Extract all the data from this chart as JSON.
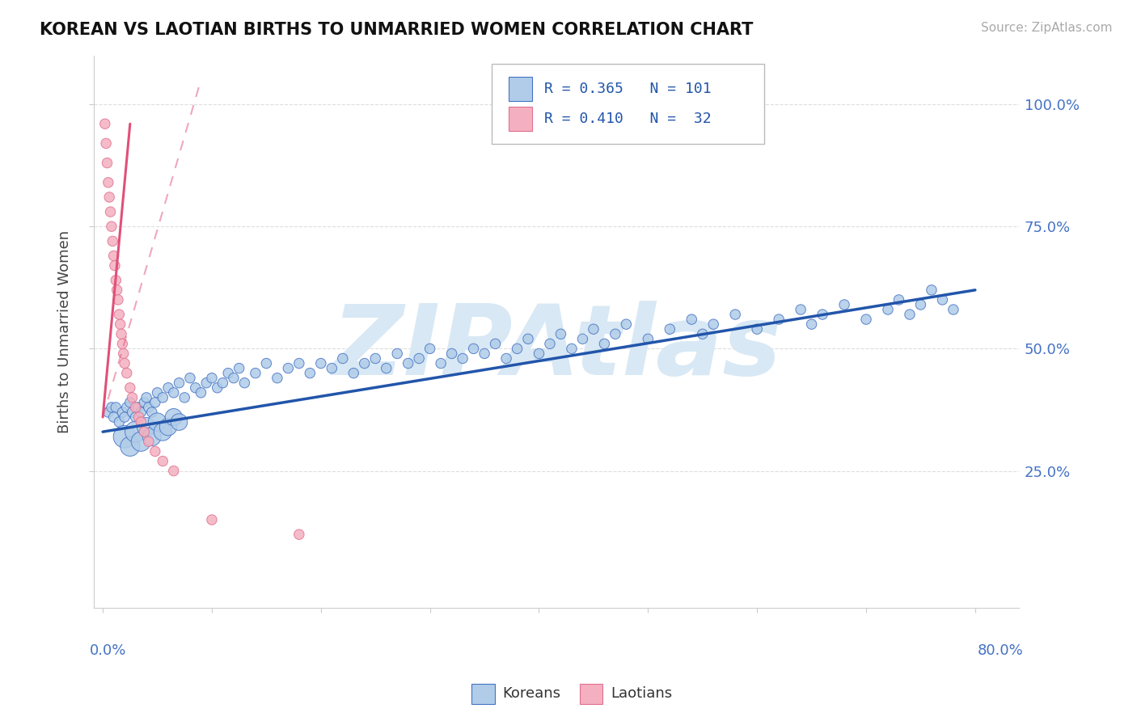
{
  "title": "KOREAN VS LAOTIAN BIRTHS TO UNMARRIED WOMEN CORRELATION CHART",
  "source_text": "Source: ZipAtlas.com",
  "ylabel": "Births to Unmarried Women",
  "legend_korean_r": "R = 0.365",
  "legend_korean_n": "N = 101",
  "legend_laotian_r": "R = 0.410",
  "legend_laotian_n": "N =  32",
  "label_korean": "Koreans",
  "label_laotian": "Laotians",
  "korean_fill": "#b0cce8",
  "korean_edge": "#4472c4",
  "laotian_fill": "#f4b0c0",
  "laotian_edge": "#e07090",
  "trend_korean_color": "#2255aa",
  "trend_laotian_color": "#e05078",
  "watermark_color": "#d8e8f4",
  "bg_color": "#ffffff",
  "grid_color": "#dddddd",
  "ytick_color": "#4472c4",
  "xtick_label_color": "#4472c4",
  "title_color": "#111111",
  "source_color": "#aaaaaa",
  "ylabel_color": "#444444",
  "xmin": 0.0,
  "xmax": 0.8,
  "ymin": 0.0,
  "ymax": 1.05,
  "yticks": [
    0.25,
    0.5,
    0.75,
    1.0
  ],
  "yticklabels": [
    "25.0%",
    "50.0%",
    "75.0%",
    "100.0%"
  ],
  "korean_x": [
    0.005,
    0.008,
    0.01,
    0.012,
    0.015,
    0.018,
    0.02,
    0.022,
    0.025,
    0.027,
    0.03,
    0.032,
    0.035,
    0.038,
    0.04,
    0.042,
    0.045,
    0.048,
    0.05,
    0.055,
    0.06,
    0.065,
    0.07,
    0.075,
    0.08,
    0.085,
    0.09,
    0.095,
    0.1,
    0.105,
    0.11,
    0.115,
    0.12,
    0.125,
    0.13,
    0.14,
    0.15,
    0.16,
    0.17,
    0.18,
    0.19,
    0.2,
    0.21,
    0.22,
    0.23,
    0.24,
    0.25,
    0.26,
    0.27,
    0.28,
    0.29,
    0.3,
    0.31,
    0.32,
    0.33,
    0.34,
    0.35,
    0.36,
    0.37,
    0.38,
    0.39,
    0.4,
    0.41,
    0.42,
    0.43,
    0.44,
    0.45,
    0.46,
    0.47,
    0.48,
    0.5,
    0.52,
    0.54,
    0.55,
    0.56,
    0.58,
    0.6,
    0.62,
    0.64,
    0.65,
    0.66,
    0.68,
    0.7,
    0.72,
    0.73,
    0.74,
    0.75,
    0.76,
    0.77,
    0.78,
    0.02,
    0.025,
    0.03,
    0.035,
    0.04,
    0.045,
    0.05,
    0.055,
    0.06,
    0.065,
    0.07
  ],
  "korean_y": [
    0.37,
    0.38,
    0.36,
    0.38,
    0.35,
    0.37,
    0.36,
    0.38,
    0.39,
    0.37,
    0.36,
    0.38,
    0.37,
    0.39,
    0.4,
    0.38,
    0.37,
    0.39,
    0.41,
    0.4,
    0.42,
    0.41,
    0.43,
    0.4,
    0.44,
    0.42,
    0.41,
    0.43,
    0.44,
    0.42,
    0.43,
    0.45,
    0.44,
    0.46,
    0.43,
    0.45,
    0.47,
    0.44,
    0.46,
    0.47,
    0.45,
    0.47,
    0.46,
    0.48,
    0.45,
    0.47,
    0.48,
    0.46,
    0.49,
    0.47,
    0.48,
    0.5,
    0.47,
    0.49,
    0.48,
    0.5,
    0.49,
    0.51,
    0.48,
    0.5,
    0.52,
    0.49,
    0.51,
    0.53,
    0.5,
    0.52,
    0.54,
    0.51,
    0.53,
    0.55,
    0.52,
    0.54,
    0.56,
    0.53,
    0.55,
    0.57,
    0.54,
    0.56,
    0.58,
    0.55,
    0.57,
    0.59,
    0.56,
    0.58,
    0.6,
    0.57,
    0.59,
    0.62,
    0.6,
    0.58,
    0.32,
    0.3,
    0.33,
    0.31,
    0.34,
    0.32,
    0.35,
    0.33,
    0.34,
    0.36,
    0.35
  ],
  "korean_sizes": [
    80,
    80,
    80,
    80,
    80,
    80,
    80,
    80,
    80,
    80,
    80,
    80,
    80,
    80,
    80,
    80,
    80,
    80,
    80,
    80,
    80,
    80,
    80,
    80,
    80,
    80,
    80,
    80,
    80,
    80,
    80,
    80,
    80,
    80,
    80,
    80,
    80,
    80,
    80,
    80,
    80,
    80,
    80,
    80,
    80,
    80,
    80,
    80,
    80,
    80,
    80,
    80,
    80,
    80,
    80,
    80,
    80,
    80,
    80,
    80,
    80,
    80,
    80,
    80,
    80,
    80,
    80,
    80,
    80,
    80,
    80,
    80,
    80,
    80,
    80,
    80,
    80,
    80,
    80,
    80,
    80,
    80,
    80,
    80,
    80,
    80,
    80,
    80,
    80,
    80,
    400,
    300,
    350,
    300,
    280,
    270,
    260,
    250,
    240,
    230,
    220
  ],
  "laotian_x": [
    0.002,
    0.003,
    0.004,
    0.005,
    0.006,
    0.007,
    0.008,
    0.009,
    0.01,
    0.011,
    0.012,
    0.013,
    0.014,
    0.015,
    0.016,
    0.017,
    0.018,
    0.019,
    0.02,
    0.022,
    0.025,
    0.027,
    0.03,
    0.033,
    0.035,
    0.038,
    0.042,
    0.048,
    0.055,
    0.065,
    0.1,
    0.18
  ],
  "laotian_y": [
    0.96,
    0.92,
    0.88,
    0.84,
    0.81,
    0.78,
    0.75,
    0.72,
    0.69,
    0.67,
    0.64,
    0.62,
    0.6,
    0.57,
    0.55,
    0.53,
    0.51,
    0.49,
    0.47,
    0.45,
    0.42,
    0.4,
    0.38,
    0.36,
    0.35,
    0.33,
    0.31,
    0.29,
    0.27,
    0.25,
    0.15,
    0.12
  ],
  "laotian_sizes": [
    80,
    80,
    80,
    80,
    80,
    80,
    80,
    80,
    80,
    80,
    80,
    80,
    80,
    80,
    80,
    80,
    80,
    80,
    80,
    80,
    80,
    80,
    80,
    80,
    80,
    80,
    80,
    80,
    80,
    80,
    80,
    80
  ],
  "trend_korean_x0": 0.0,
  "trend_korean_x1": 0.8,
  "trend_korean_y0": 0.33,
  "trend_korean_y1": 0.62,
  "trend_laotian_solid_x0": 0.0,
  "trend_laotian_solid_x1": 0.025,
  "trend_laotian_solid_y0": 0.36,
  "trend_laotian_solid_y1": 0.96,
  "trend_laotian_dash_x0": 0.0,
  "trend_laotian_dash_x1": 0.09,
  "trend_laotian_dash_y0": 0.36,
  "trend_laotian_dash_y1": 1.05
}
